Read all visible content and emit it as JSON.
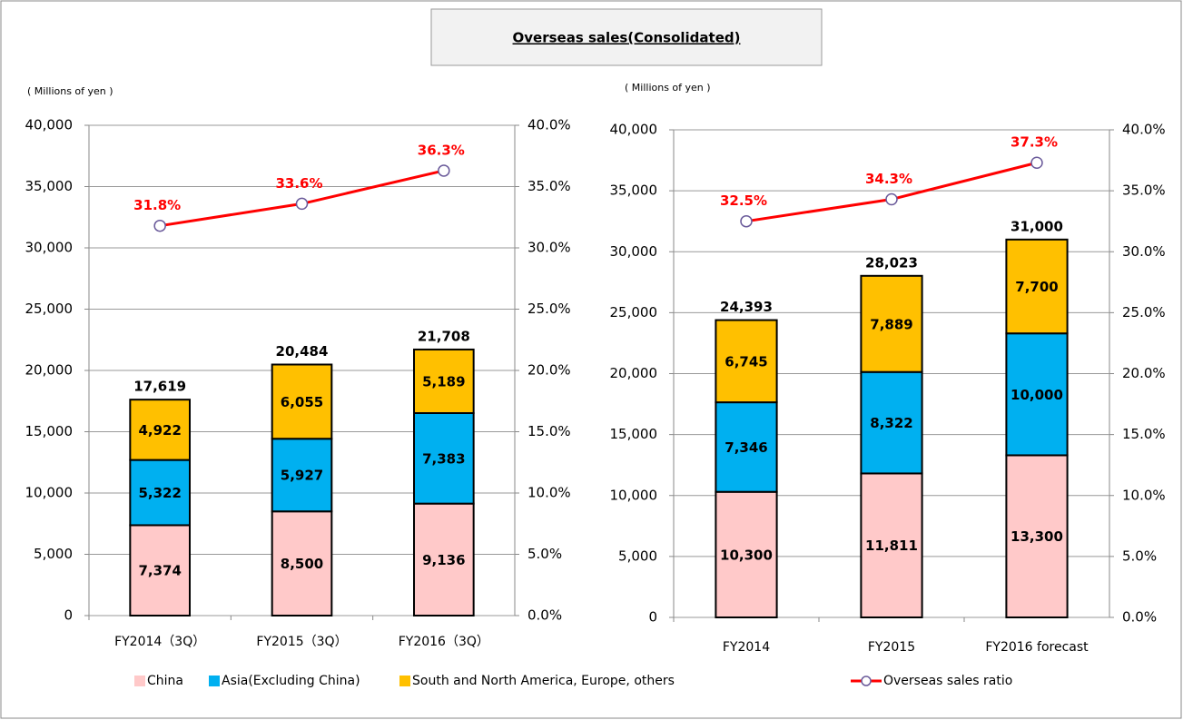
{
  "title": "Overseas sales(Consolidated)",
  "chart_data": [
    {
      "type": "bar",
      "y_label": "( Millions of yen )",
      "categories": [
        "FY2014（3Q）",
        "FY2015（3Q）",
        "FY2016（3Q）"
      ],
      "series": [
        {
          "name": "China",
          "color": "#ffc9c9",
          "values": [
            7374,
            8500,
            9136
          ],
          "value_labels": [
            "7,374",
            "8,500",
            "9,136"
          ]
        },
        {
          "name": "Asia(Excluding China)",
          "color": "#00b0f0",
          "values": [
            5322,
            5927,
            7383
          ],
          "value_labels": [
            "5,322",
            "5,927",
            "7,383"
          ]
        },
        {
          "name": "South and North America, Europe, others",
          "color": "#ffc000",
          "values": [
            4922,
            6055,
            5189
          ],
          "value_labels": [
            "4,922",
            "6,055",
            "5,189"
          ]
        },
        {
          "name": "Overseas sales ratio",
          "type": "line",
          "axis": "y2",
          "color": "#ff0000",
          "values": [
            31.8,
            33.6,
            36.3
          ],
          "value_labels": [
            "31.8%",
            "33.6%",
            "36.3%"
          ]
        }
      ],
      "totals": [
        17619,
        20484,
        21708
      ],
      "total_labels": [
        "17,619",
        "20,484",
        "21,708"
      ],
      "ylim": [
        0,
        40000
      ],
      "yticks": [
        0,
        {
          "value": 5000,
          "label": "5,000"
        },
        {
          "value": 10000,
          "label": "10,000"
        },
        {
          "value": 15000,
          "label": "15,000"
        },
        {
          "value": 20000,
          "label": "20,000"
        },
        {
          "value": 25000,
          "label": "25,000"
        },
        {
          "value": 30000,
          "label": "30,000"
        },
        {
          "value": 35000,
          "label": "35,000"
        },
        {
          "value": 40000,
          "label": "40,000"
        }
      ],
      "y2lim": [
        0,
        40
      ],
      "y2ticks": [
        {
          "value": 0,
          "label": "0.0%"
        },
        {
          "value": 5,
          "label": "5.0%"
        },
        {
          "value": 10,
          "label": "10.0%"
        },
        {
          "value": 15,
          "label": "15.0%"
        },
        {
          "value": 20,
          "label": "20.0%"
        },
        {
          "value": 25,
          "label": "25.0%"
        },
        {
          "value": 30,
          "label": "30.0%"
        },
        {
          "value": 35,
          "label": "35.0%"
        },
        {
          "value": 40,
          "label": "40.0%"
        }
      ],
      "grid": true
    },
    {
      "type": "bar",
      "y_label": "( Millions of yen )",
      "categories": [
        "FY2014",
        "FY2015",
        "FY2016 forecast"
      ],
      "series": [
        {
          "color": "#ffc9c9",
          "values": [
            10300,
            11811,
            13300
          ],
          "value_labels": [
            "10,300",
            "11,811",
            "13,300"
          ]
        },
        {
          "color": "#00b0f0",
          "values": [
            7346,
            8322,
            10000
          ],
          "value_labels": [
            "7,346",
            "8,322",
            "10,000"
          ]
        },
        {
          "color": "#ffc000",
          "values": [
            6745,
            7889,
            7700
          ],
          "value_labels": [
            "6,745",
            "7,889",
            "7,700"
          ]
        },
        {
          "type": "line",
          "axis": "y2",
          "color": "#ff0000",
          "values": [
            32.5,
            34.3,
            37.3
          ],
          "value_labels": [
            "32.5%",
            "34.3%",
            "37.3%"
          ]
        }
      ],
      "totals": [
        24393,
        28023,
        31000
      ],
      "total_labels": [
        "24,393",
        "28,023",
        "31,000"
      ],
      "ylim": [
        0,
        40000
      ],
      "yticks": [
        0,
        {
          "value": 5000,
          "label": "5,000"
        },
        {
          "value": 10000,
          "label": "10,000"
        },
        {
          "value": 15000,
          "label": "15,000"
        },
        {
          "value": 20000,
          "label": "20,000"
        },
        {
          "value": 25000,
          "label": "25,000"
        },
        {
          "value": 30000,
          "label": "30,000"
        },
        {
          "value": 35000,
          "label": "35,000"
        },
        {
          "value": 40000,
          "label": "40,000"
        }
      ],
      "y2lim": [
        0,
        40
      ],
      "y2ticks": [
        {
          "value": 0,
          "label": "0.0%"
        },
        {
          "value": 5,
          "label": "5.0%"
        },
        {
          "value": 10,
          "label": "10.0%"
        },
        {
          "value": 15,
          "label": "15.0%"
        },
        {
          "value": 20,
          "label": "20.0%"
        },
        {
          "value": 25,
          "label": "25.0%"
        },
        {
          "value": 30,
          "label": "30.0%"
        },
        {
          "value": 35,
          "label": "35.0%"
        },
        {
          "value": 40,
          "label": "40.0%"
        }
      ],
      "grid": true
    }
  ]
}
